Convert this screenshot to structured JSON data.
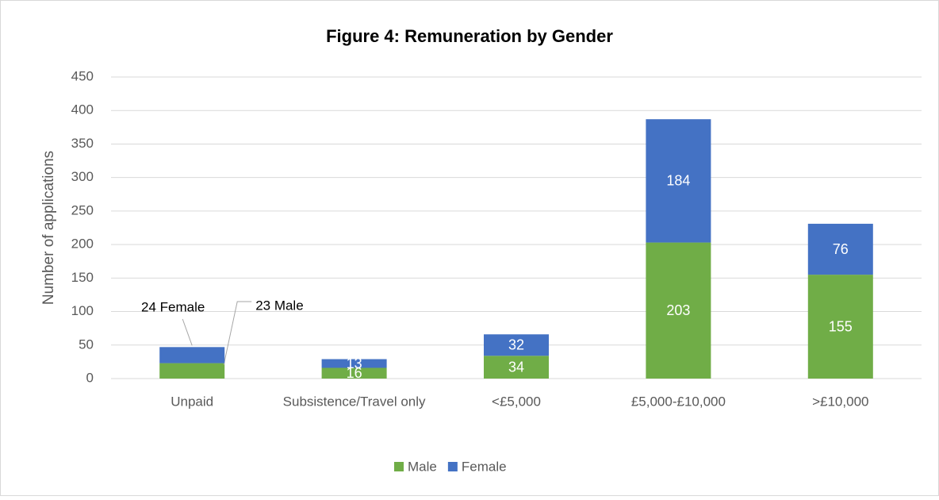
{
  "chart_data": {
    "type": "stacked_bar",
    "title": "Figure 4: Remuneration by Gender",
    "y_label": "Number of applications",
    "categories": [
      "Unpaid",
      "Subsistence/Travel only",
      "<£5,000",
      "£5,000-£10,000",
      ">£10,000"
    ],
    "series": [
      {
        "name": "Male",
        "color": "#70ad47",
        "values": [
          23,
          16,
          34,
          203,
          155
        ],
        "value_labels": [
          "23 Male",
          "16",
          "34",
          "203",
          "155"
        ]
      },
      {
        "name": "Female",
        "color": "#4472c4",
        "values": [
          24,
          13,
          32,
          184,
          76
        ],
        "value_labels": [
          "24 Female",
          "13",
          "32",
          "184",
          "76"
        ]
      }
    ],
    "ylim": [
      0,
      450
    ],
    "yticks": [
      0,
      50,
      100,
      150,
      200,
      250,
      300,
      350,
      400,
      450
    ],
    "grid": true,
    "legend": "bottom"
  }
}
